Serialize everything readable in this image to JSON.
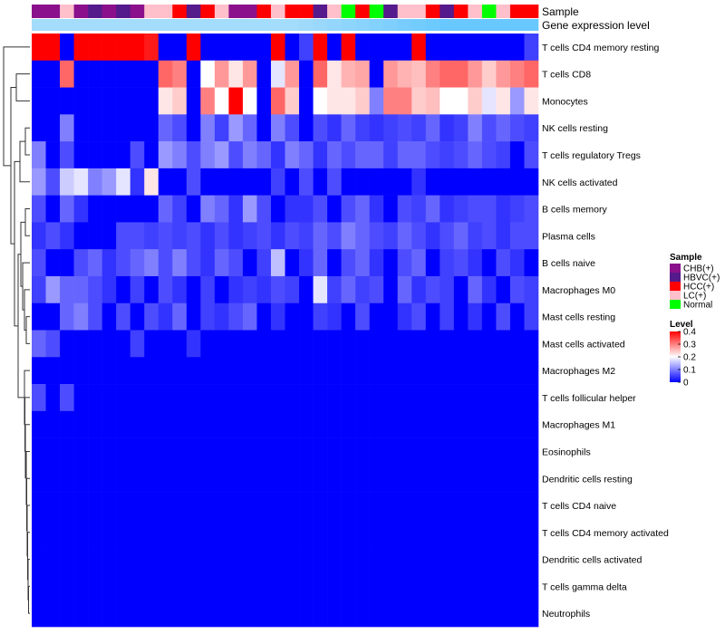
{
  "chart_data": {
    "type": "heatmap",
    "title": "",
    "annotation_tracks": [
      {
        "key": "sample",
        "label": "Sample"
      },
      {
        "key": "gene_expression",
        "label": "Gene expression level"
      }
    ],
    "sample_groups": [
      {
        "label": "CHB(+)",
        "color": "#8B108B"
      },
      {
        "label": "HBVC(+)",
        "color": "#551A8B"
      },
      {
        "label": "HCC(+)",
        "color": "#FF0000"
      },
      {
        "label": "LC(+)",
        "color": "#FFC0CB"
      },
      {
        "label": "Normal",
        "color": "#00FF00"
      }
    ],
    "sample_annotation": [
      "CHB(+)",
      "CHB(+)",
      "LC(+)",
      "CHB(+)",
      "HBVC(+)",
      "CHB(+)",
      "HBVC(+)",
      "CHB(+)",
      "LC(+)",
      "LC(+)",
      "HCC(+)",
      "HBVC(+)",
      "HCC(+)",
      "LC(+)",
      "CHB(+)",
      "CHB(+)",
      "HCC(+)",
      "LC(+)",
      "HCC(+)",
      "HCC(+)",
      "HBVC(+)",
      "LC(+)",
      "Normal",
      "HCC(+)",
      "Normal",
      "HBVC(+)",
      "LC(+)",
      "LC(+)",
      "HCC(+)",
      "HBVC(+)",
      "HCC(+)",
      "LC(+)",
      "Normal",
      "LC(+)",
      "HCC(+)",
      "HCC(+)"
    ],
    "gene_expression_annotation": [
      0.45,
      0.45,
      0.45,
      0.45,
      0.45,
      0.45,
      0.45,
      0.45,
      0.45,
      0.45,
      0.45,
      0.45,
      0.45,
      0.45,
      0.45,
      0.45,
      0.45,
      0.45,
      0.45,
      0.5,
      0.55,
      0.6,
      0.65,
      0.7,
      0.75,
      0.8,
      0.85,
      0.9,
      0.95,
      1,
      1,
      1,
      1,
      1,
      1,
      1
    ],
    "rows": [
      "T cells CD4 memory resting",
      "T cells CD8",
      "Monocytes",
      "NK cells resting",
      "T cells regulatory  Tregs",
      "NK cells activated",
      "B cells memory",
      "Plasma cells",
      "B cells naive",
      "Macrophages M0",
      "Mast cells resting",
      "Mast cells activated",
      "Macrophages M2",
      "T cells follicular helper",
      "Macrophages M1",
      "Eosinophils",
      "Dendritic cells resting",
      "T cells CD4 naive",
      "T cells CD4 memory activated",
      "Dendritic cells activated",
      "T cells gamma delta",
      "Neutrophils"
    ],
    "values": [
      [
        0.4,
        0.4,
        0,
        0.4,
        0.4,
        0.4,
        0.4,
        0.4,
        0.38,
        0,
        0,
        0.4,
        0,
        0,
        0,
        0,
        0,
        0.4,
        0,
        0.05,
        0.4,
        0,
        0.4,
        0,
        0,
        0,
        0,
        0.4,
        0,
        0,
        0,
        0,
        0,
        0,
        0,
        0.05
      ],
      [
        0,
        0,
        0.32,
        0,
        0,
        0,
        0,
        0,
        0,
        0.32,
        0.3,
        0,
        0.2,
        0.28,
        0.22,
        0.28,
        0,
        0.18,
        0.28,
        0,
        0.32,
        0.22,
        0.26,
        0.27,
        0,
        0.28,
        0.26,
        0.25,
        0.3,
        0.32,
        0.32,
        0.28,
        0.24,
        0.28,
        0.3,
        0.32
      ],
      [
        0,
        0,
        0,
        0,
        0,
        0,
        0,
        0,
        0,
        0.22,
        0.24,
        0,
        0.3,
        0.2,
        0.4,
        0.2,
        0,
        0.32,
        0.24,
        0,
        0.2,
        0.22,
        0.22,
        0.24,
        0.1,
        0.3,
        0.3,
        0.24,
        0.25,
        0.2,
        0.2,
        0.24,
        0.18,
        0.22,
        0.12,
        0.22
      ],
      [
        0,
        0,
        0.1,
        0,
        0,
        0,
        0,
        0,
        0,
        0.08,
        0.06,
        0,
        0.1,
        0.05,
        0.12,
        0.08,
        0,
        0.1,
        0.06,
        0,
        0.06,
        0.04,
        0.08,
        0.05,
        0.04,
        0.05,
        0.06,
        0.05,
        0.08,
        0.04,
        0.05,
        0.1,
        0.06,
        0.08,
        0.06,
        0.05
      ],
      [
        0.1,
        0,
        0.06,
        0,
        0,
        0,
        0,
        0.06,
        0,
        0.12,
        0.1,
        0.06,
        0.1,
        0.12,
        0.06,
        0.1,
        0.08,
        0.04,
        0.1,
        0.08,
        0.04,
        0.08,
        0.06,
        0.08,
        0.08,
        0.05,
        0.08,
        0.08,
        0.06,
        0.05,
        0.06,
        0.08,
        0.06,
        0.05,
        0,
        0.06
      ],
      [
        0.12,
        0.06,
        0.16,
        0.18,
        0.1,
        0.12,
        0.18,
        0.04,
        0.22,
        0,
        0,
        0.06,
        0,
        0,
        0,
        0,
        0,
        0.05,
        0,
        0.06,
        0,
        0.06,
        0,
        0,
        0,
        0,
        0,
        0.04,
        0,
        0,
        0,
        0,
        0,
        0,
        0,
        0
      ],
      [
        0.06,
        0,
        0.08,
        0.04,
        0,
        0,
        0,
        0,
        0,
        0.08,
        0.05,
        0,
        0.1,
        0.08,
        0.04,
        0.12,
        0.06,
        0,
        0.04,
        0.04,
        0.06,
        0,
        0.06,
        0.08,
        0.04,
        0,
        0.06,
        0.05,
        0.08,
        0.04,
        0.05,
        0.06,
        0.06,
        0.04,
        0.05,
        0.06
      ],
      [
        0.04,
        0.06,
        0.04,
        0,
        0,
        0,
        0.06,
        0.06,
        0.05,
        0.06,
        0.05,
        0.06,
        0.04,
        0.06,
        0.04,
        0.05,
        0.06,
        0.04,
        0.06,
        0.05,
        0.08,
        0.06,
        0.1,
        0.08,
        0.06,
        0.05,
        0.08,
        0.06,
        0.04,
        0.06,
        0.08,
        0.05,
        0.06,
        0.04,
        0.06,
        0.06
      ],
      [
        0.06,
        0,
        0,
        0.06,
        0.08,
        0.04,
        0.06,
        0.08,
        0.1,
        0.06,
        0.1,
        0.06,
        0.04,
        0.08,
        0.06,
        0,
        0.05,
        0.15,
        0,
        0.04,
        0.08,
        0,
        0.06,
        0.08,
        0.04,
        0,
        0.06,
        0.08,
        0,
        0.05,
        0.06,
        0.04,
        0,
        0.06,
        0.04,
        0
      ],
      [
        0.05,
        0.12,
        0.08,
        0.08,
        0.06,
        0.04,
        0,
        0.05,
        0,
        0.06,
        0.04,
        0,
        0.05,
        0,
        0.04,
        0.05,
        0.04,
        0.06,
        0.05,
        0,
        0.18,
        0.05,
        0.08,
        0.05,
        0.06,
        0,
        0.08,
        0.04,
        0.06,
        0.05,
        0,
        0.08,
        0.04,
        0,
        0.06,
        0.05
      ],
      [
        0,
        0,
        0.08,
        0.1,
        0.06,
        0,
        0.06,
        0,
        0.06,
        0.04,
        0.08,
        0,
        0.05,
        0.04,
        0.06,
        0.08,
        0,
        0.04,
        0,
        0,
        0.05,
        0.04,
        0,
        0.06,
        0,
        0,
        0.04,
        0.06,
        0,
        0.05,
        0,
        0.04,
        0,
        0.06,
        0,
        0.05
      ],
      [
        0.08,
        0.06,
        0,
        0,
        0,
        0,
        0,
        0.05,
        0,
        0,
        0,
        0.04,
        0,
        0,
        0,
        0,
        0,
        0,
        0,
        0,
        0,
        0,
        0,
        0,
        0,
        0,
        0,
        0,
        0,
        0,
        0,
        0,
        0,
        0,
        0,
        0
      ],
      [
        0,
        0,
        0,
        0,
        0,
        0,
        0,
        0,
        0,
        0,
        0,
        0,
        0,
        0,
        0,
        0,
        0,
        0,
        0,
        0,
        0,
        0,
        0,
        0,
        0,
        0,
        0,
        0,
        0,
        0,
        0,
        0,
        0,
        0,
        0,
        0
      ],
      [
        0.06,
        0,
        0.06,
        0,
        0,
        0,
        0,
        0,
        0,
        0,
        0,
        0,
        0,
        0,
        0,
        0,
        0,
        0,
        0,
        0,
        0,
        0,
        0,
        0,
        0,
        0,
        0,
        0,
        0,
        0,
        0,
        0,
        0,
        0,
        0,
        0
      ],
      [
        0,
        0,
        0,
        0,
        0,
        0,
        0,
        0,
        0,
        0,
        0,
        0,
        0,
        0,
        0,
        0,
        0,
        0,
        0,
        0,
        0,
        0,
        0,
        0,
        0,
        0,
        0,
        0,
        0,
        0,
        0,
        0,
        0,
        0,
        0,
        0
      ],
      [
        0,
        0,
        0,
        0,
        0,
        0,
        0,
        0,
        0,
        0,
        0,
        0,
        0,
        0,
        0,
        0,
        0,
        0,
        0,
        0,
        0,
        0,
        0,
        0,
        0,
        0,
        0,
        0,
        0,
        0,
        0,
        0,
        0,
        0,
        0,
        0
      ],
      [
        0,
        0,
        0,
        0,
        0,
        0,
        0,
        0,
        0,
        0,
        0,
        0,
        0,
        0,
        0,
        0,
        0,
        0,
        0,
        0,
        0,
        0,
        0,
        0,
        0,
        0,
        0,
        0,
        0,
        0,
        0,
        0,
        0,
        0,
        0,
        0
      ],
      [
        0,
        0,
        0,
        0,
        0,
        0,
        0,
        0,
        0,
        0,
        0,
        0,
        0,
        0,
        0,
        0,
        0,
        0,
        0,
        0,
        0,
        0,
        0,
        0,
        0,
        0,
        0,
        0,
        0,
        0,
        0,
        0,
        0,
        0,
        0,
        0
      ],
      [
        0,
        0,
        0,
        0,
        0,
        0,
        0,
        0,
        0,
        0,
        0,
        0,
        0,
        0,
        0,
        0,
        0,
        0,
        0,
        0,
        0,
        0,
        0,
        0,
        0,
        0,
        0,
        0,
        0,
        0,
        0,
        0,
        0,
        0,
        0,
        0
      ],
      [
        0,
        0,
        0,
        0,
        0,
        0,
        0,
        0,
        0,
        0,
        0,
        0,
        0,
        0,
        0,
        0,
        0,
        0,
        0,
        0,
        0,
        0,
        0,
        0,
        0,
        0,
        0,
        0,
        0,
        0,
        0,
        0,
        0,
        0,
        0,
        0
      ],
      [
        0,
        0,
        0,
        0,
        0,
        0,
        0,
        0,
        0,
        0,
        0,
        0,
        0,
        0,
        0,
        0,
        0,
        0,
        0,
        0,
        0,
        0,
        0,
        0,
        0,
        0,
        0,
        0,
        0,
        0,
        0,
        0,
        0,
        0,
        0,
        0
      ],
      [
        0,
        0,
        0,
        0,
        0,
        0,
        0,
        0,
        0,
        0,
        0,
        0,
        0,
        0,
        0,
        0,
        0,
        0,
        0,
        0,
        0,
        0,
        0,
        0,
        0,
        0,
        0,
        0,
        0,
        0,
        0,
        0,
        0,
        0,
        0,
        0
      ]
    ],
    "color_scale": {
      "min": 0,
      "max": 0.4,
      "low": "#0000FF",
      "mid": "#FFFFFF",
      "high": "#FF0000"
    },
    "legend": {
      "sample_title": "Sample",
      "level_title": "Level",
      "level_ticks": [
        "0.4",
        "0.3",
        "0.2",
        "0.1",
        "0"
      ],
      "placement": "right"
    },
    "dendrogram": "rows"
  }
}
